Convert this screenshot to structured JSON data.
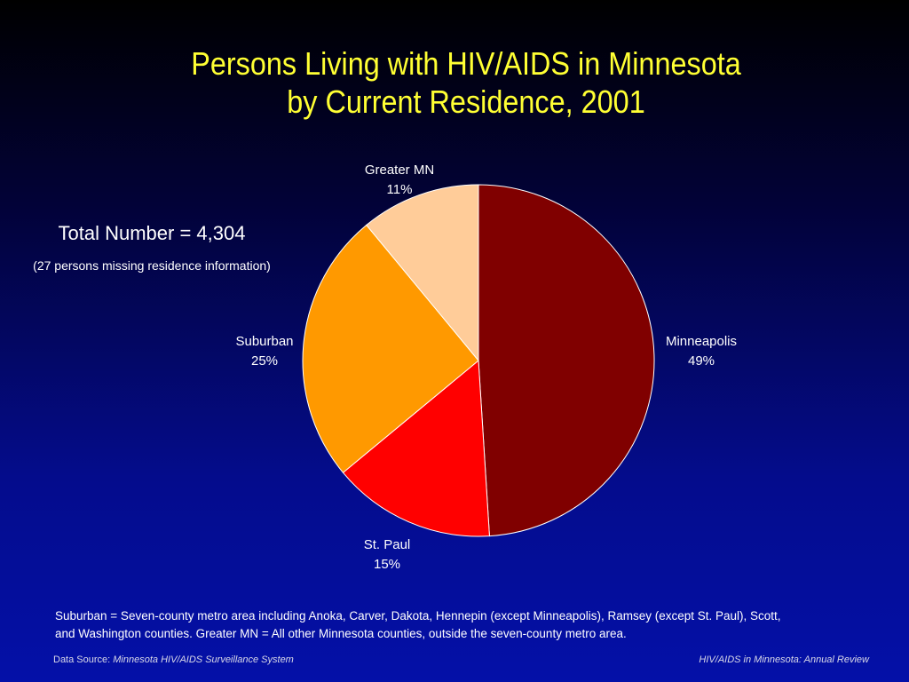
{
  "chart_data": {
    "type": "pie",
    "title_lines": [
      "Persons Living with HIV/AIDS in Minnesota",
      "by Current Residence, 2001"
    ],
    "total_label": "Total Number = 4,304",
    "missing_note": "(27 persons missing residence information)",
    "slices": [
      {
        "name": "Minneapolis",
        "pct_label": "49%",
        "value": 49,
        "color": "#800000"
      },
      {
        "name": "St. Paul",
        "pct_label": "15%",
        "value": 15,
        "color": "#ff0000"
      },
      {
        "name": "Suburban",
        "pct_label": "25%",
        "value": 25,
        "color": "#ff9900"
      },
      {
        "name": "Greater MN",
        "pct_label": "11%",
        "value": 11,
        "color": "#ffcc99"
      }
    ],
    "start_position": "12 o'clock, clockwise"
  },
  "footnote_lines": [
    "Suburban = Seven-county metro area including Anoka, Carver, Dakota, Hennepin (except Minneapolis), Ramsey (except St. Paul), Scott,",
    "and Washington counties.  Greater MN = All other Minnesota counties, outside the seven-county metro area."
  ],
  "source": {
    "prefix": "Data Source:  ",
    "name": "Minnesota HIV/AIDS Surveillance System"
  },
  "report_name": "HIV/AIDS in Minnesota: Annual Review",
  "colors": {
    "title": "#ffff33",
    "slice_border": "#ffffff"
  }
}
